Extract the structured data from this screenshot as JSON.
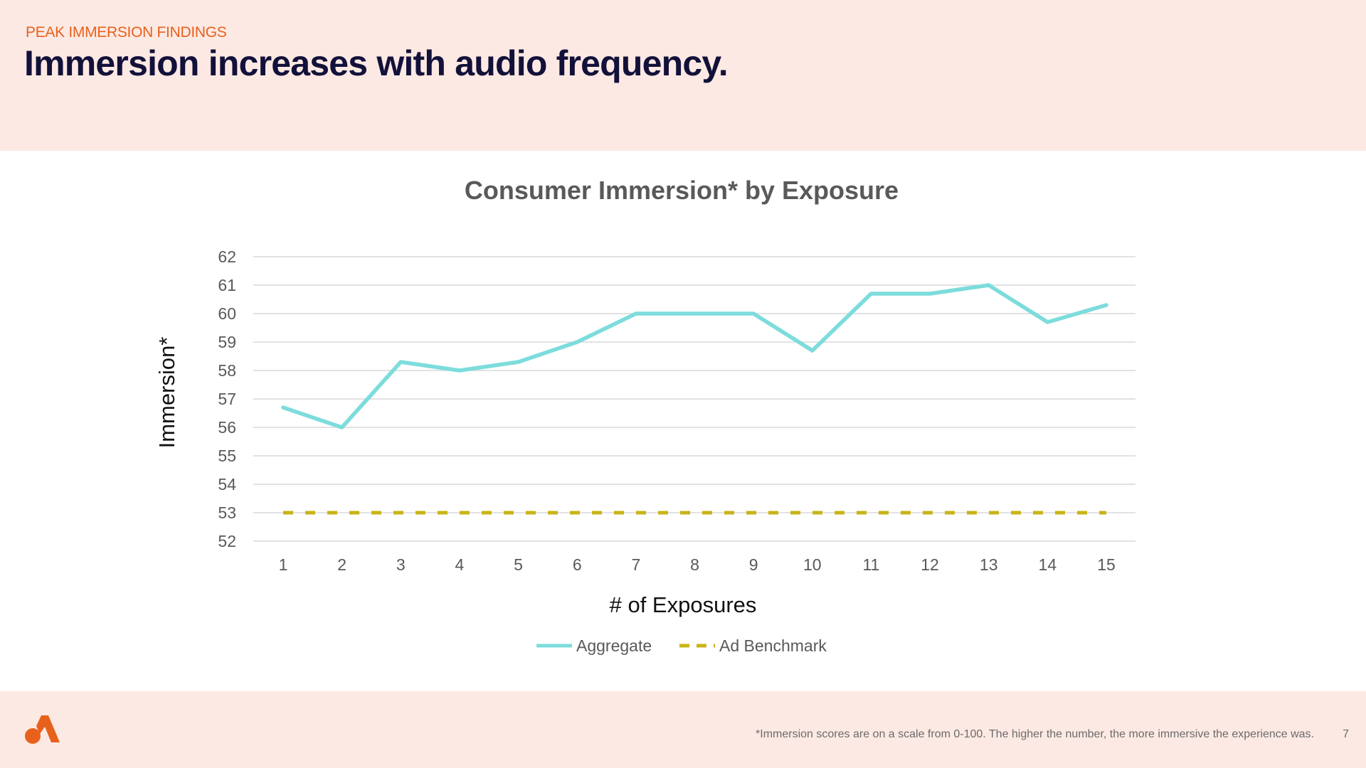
{
  "header": {
    "eyebrow": "PEAK IMMERSION FINDINGS",
    "headline": "Immersion increases with audio frequency."
  },
  "footer": {
    "footnote": "*Immersion scores are on a scale from 0-100. The higher the number, the more immersive the experience was.",
    "page_number": "7",
    "logo_icon": "brand-logo-icon"
  },
  "colors": {
    "accent": "#e8611c",
    "header_bg": "#fde9e3",
    "aggregate": "#7ddcdc",
    "benchmark": "#c8b416"
  },
  "chart_data": {
    "type": "line",
    "title": "Consumer Immersion* by Exposure",
    "xlabel": "# of Exposures",
    "ylabel": "Immersion*",
    "x": [
      1,
      2,
      3,
      4,
      5,
      6,
      7,
      8,
      9,
      10,
      11,
      12,
      13,
      14,
      15
    ],
    "ylim": [
      52,
      62
    ],
    "yticks": [
      52,
      53,
      54,
      55,
      56,
      57,
      58,
      59,
      60,
      61,
      62
    ],
    "grid": true,
    "legend_position": "bottom",
    "series": [
      {
        "name": "Aggregate",
        "style": "solid",
        "color": "#7ddcdc",
        "values": [
          56.7,
          56.0,
          58.3,
          58.0,
          58.3,
          59.0,
          60.0,
          60.0,
          60.0,
          58.7,
          60.7,
          60.7,
          61.0,
          59.7,
          60.3
        ]
      },
      {
        "name": "Ad Benchmark",
        "style": "dashed",
        "color": "#c8b416",
        "values": [
          53,
          53,
          53,
          53,
          53,
          53,
          53,
          53,
          53,
          53,
          53,
          53,
          53,
          53,
          53
        ]
      }
    ]
  }
}
